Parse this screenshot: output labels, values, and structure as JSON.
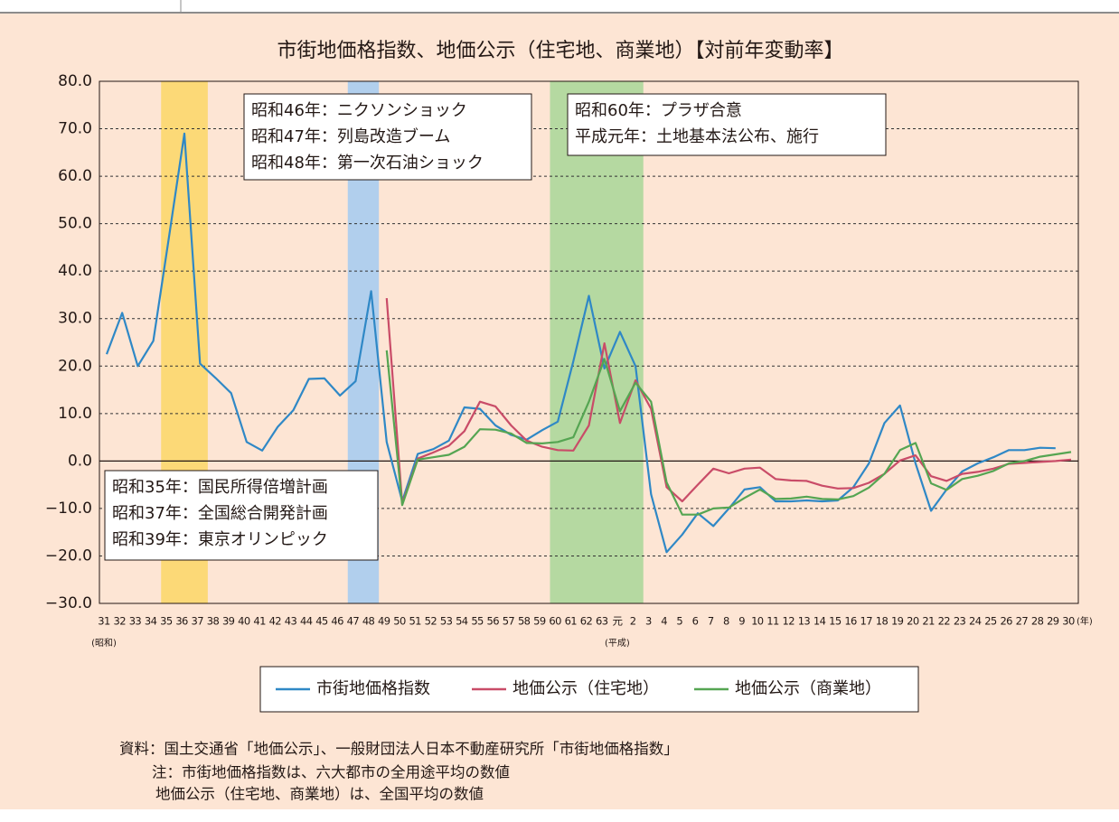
{
  "chart_data": {
    "type": "line",
    "title": "市街地価格指数、地価公示（住宅地、商業地）【対前年変動率】",
    "categories": [
      "31",
      "32",
      "33",
      "34",
      "35",
      "36",
      "37",
      "38",
      "39",
      "40",
      "41",
      "42",
      "43",
      "44",
      "45",
      "46",
      "47",
      "48",
      "49",
      "50",
      "51",
      "52",
      "53",
      "54",
      "55",
      "56",
      "57",
      "58",
      "59",
      "60",
      "61",
      "62",
      "63",
      "元",
      "2",
      "3",
      "4",
      "5",
      "6",
      "7",
      "8",
      "9",
      "10",
      "11",
      "12",
      "13",
      "14",
      "15",
      "16",
      "17",
      "18",
      "19",
      "20",
      "21",
      "22",
      "23",
      "24",
      "25",
      "26",
      "27",
      "28",
      "29",
      "30"
    ],
    "x_sub_labels": [
      {
        "category": "31",
        "label": "(昭和)"
      },
      {
        "category": "元",
        "label": "(平成)"
      }
    ],
    "x_unit": "(年)",
    "series": [
      {
        "name": "市街地価格指数",
        "color": "#2f88c6",
        "values": [
          22.5,
          31.2,
          20,
          25.3,
          47,
          69,
          20.5,
          17.5,
          14.3,
          4,
          2.2,
          7.2,
          10.7,
          17.3,
          17.4,
          13.8,
          16.8,
          35.8,
          4,
          -8.5,
          1.5,
          2.5,
          4.3,
          11.3,
          11,
          7.5,
          5.5,
          4.5,
          6.5,
          8.3,
          21,
          34.8,
          19.5,
          27.2,
          20,
          -7,
          -19.2,
          -15.5,
          -11,
          -13.7,
          -10,
          -6,
          -5.5,
          -8.5,
          -8.5,
          -8.3,
          -8.5,
          -8.3,
          -5.5,
          -0.5,
          8,
          11.7,
          -0.5,
          -10.5,
          -6,
          -2.2,
          -0.5,
          0.8,
          2.3,
          2.3,
          2.8,
          2.7,
          null
        ]
      },
      {
        "name": "地価公示（住宅地）",
        "color": "#c94c68",
        "values": [
          null,
          null,
          null,
          null,
          null,
          null,
          null,
          null,
          null,
          null,
          null,
          null,
          null,
          null,
          null,
          null,
          null,
          null,
          34.3,
          -9,
          0.5,
          1.8,
          3.2,
          6.3,
          12.5,
          11.5,
          7.5,
          4.3,
          3,
          2.3,
          2.2,
          7.5,
          24.8,
          8,
          17,
          11,
          -5.5,
          -8.5,
          -5,
          -1.6,
          -2.6,
          -1.6,
          -1.4,
          -3.8,
          -4.1,
          -4.2,
          -5.2,
          -5.8,
          -5.7,
          -4.6,
          -2.7,
          0.1,
          1.2,
          -3.2,
          -4.2,
          -2.7,
          -2.3,
          -1.6,
          -0.6,
          -0.4,
          -0.2,
          0,
          0.3
        ]
      },
      {
        "name": "地価公示（商業地）",
        "color": "#55a552",
        "values": [
          null,
          null,
          null,
          null,
          null,
          null,
          null,
          null,
          null,
          null,
          null,
          null,
          null,
          null,
          null,
          null,
          null,
          null,
          23.3,
          -9.3,
          0.3,
          0.8,
          1.3,
          3,
          6.7,
          6.6,
          5.8,
          3.8,
          3.7,
          4,
          5,
          12.5,
          21.5,
          10.5,
          16.5,
          12.5,
          -4.5,
          -11.3,
          -11.3,
          -10,
          -9.8,
          -7.8,
          -6,
          -8,
          -7.9,
          -7.5,
          -8,
          -8.1,
          -7.4,
          -5.6,
          -2.7,
          2.3,
          3.8,
          -4.7,
          -6.1,
          -3.8,
          -3.1,
          -2.1,
          -0.5,
          0,
          0.9,
          1.4,
          1.9
        ]
      }
    ],
    "ylim": [
      -30,
      80
    ],
    "yticks": [
      {
        "value": -30,
        "label": "−30.0"
      },
      {
        "value": -20,
        "label": "−20.0"
      },
      {
        "value": -10,
        "label": "−10.0"
      },
      {
        "value": 0,
        "label": "0.0"
      },
      {
        "value": 10,
        "label": "10.0"
      },
      {
        "value": 20,
        "label": "20.0"
      },
      {
        "value": 30,
        "label": "30.0"
      },
      {
        "value": 40,
        "label": "40.0"
      },
      {
        "value": 50,
        "label": "50.0"
      },
      {
        "value": 60,
        "label": "60.0"
      },
      {
        "value": 70,
        "label": "70.0"
      },
      {
        "value": 80,
        "label": "80.0"
      }
    ],
    "grid": true,
    "zero_line": true,
    "highlight_bands": [
      {
        "from": "35",
        "to": "37",
        "color": "#fcd977"
      },
      {
        "from": "47",
        "to": "48",
        "color": "#b1cfed"
      },
      {
        "from": "60",
        "to": "2",
        "color": "#b5d9a1"
      }
    ],
    "annotations": [
      {
        "lines": [
          "昭和46年：ニクソンショック",
          "昭和47年：列島改造ブーム",
          "昭和48年：第一次石油ショック"
        ]
      },
      {
        "lines": [
          "昭和60年：プラザ合意",
          "平成元年：土地基本法公布、施行"
        ]
      },
      {
        "lines": [
          "昭和35年：国民所得倍増計画",
          "昭和37年：全国総合開発計画",
          "昭和39年：東京オリンピック"
        ]
      }
    ],
    "notes": [
      "資料：国土交通省「地価公示」、一般財団法人日本不動産研究所「市街地価格指数」",
      "注：市街地価格指数は、六大都市の全用途平均の数値",
      "地価公示（住宅地、商業地）は、全国平均の数値"
    ]
  }
}
